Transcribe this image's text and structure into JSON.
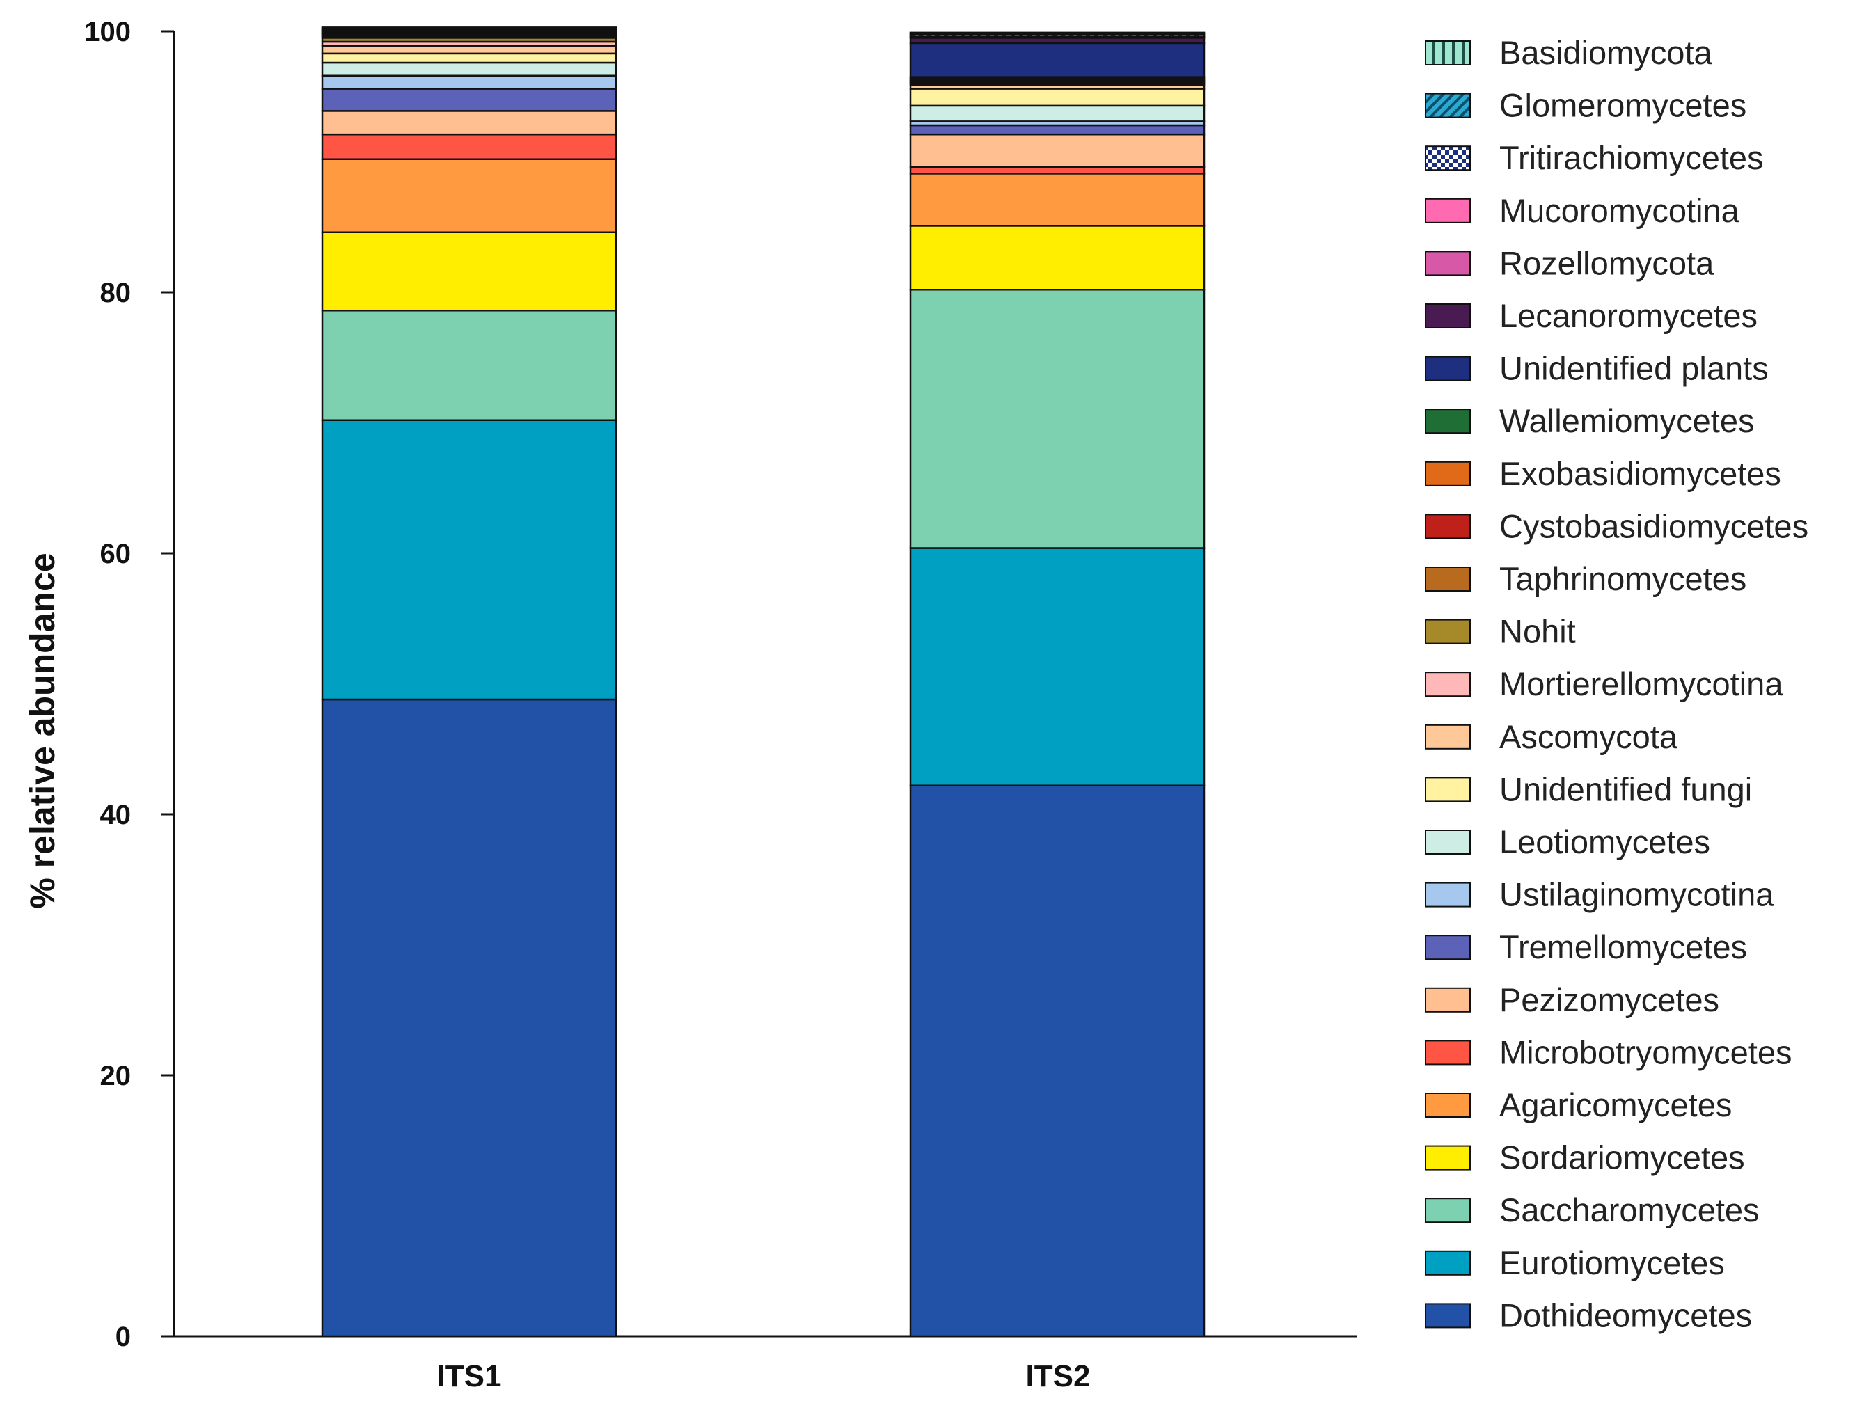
{
  "chart_data": {
    "type": "bar",
    "stacked": true,
    "title": "",
    "xlabel": "",
    "ylabel": "% relative abundance",
    "ylim": [
      0,
      100
    ],
    "yticks": [
      "0",
      "20",
      "40",
      "60",
      "80",
      "100"
    ],
    "categories": [
      "ITS1",
      "ITS2"
    ],
    "legend_position": "right",
    "series": [
      {
        "name": "Dothideomycetes",
        "color": "#2152A8",
        "pattern": "",
        "values": [
          48.8,
          42.2
        ]
      },
      {
        "name": "Eurotiomycetes",
        "color": "#00A0C2",
        "pattern": "",
        "values": [
          21.4,
          18.2
        ]
      },
      {
        "name": "Saccharomycetes",
        "color": "#7DD0B0",
        "pattern": "",
        "values": [
          8.4,
          19.8
        ]
      },
      {
        "name": "Sordariomycetes",
        "color": "#FFEE00",
        "pattern": "",
        "values": [
          6.0,
          4.9
        ]
      },
      {
        "name": "Agaricomycetes",
        "color": "#FF9A40",
        "pattern": "",
        "values": [
          5.6,
          4.0
        ]
      },
      {
        "name": "Microbotryomycetes",
        "color": "#FF5544",
        "pattern": "",
        "values": [
          1.9,
          0.5
        ]
      },
      {
        "name": "Pezizomycetes",
        "color": "#FFBF90",
        "pattern": "",
        "values": [
          1.8,
          2.5
        ]
      },
      {
        "name": "Tremellomycetes",
        "color": "#5B62B8",
        "pattern": "",
        "values": [
          1.7,
          0.7
        ]
      },
      {
        "name": "Ustilaginomycotina",
        "color": "#A6C8EE",
        "pattern": "",
        "values": [
          1.0,
          0.3
        ]
      },
      {
        "name": "Leotiomycetes",
        "color": "#CDEDE5",
        "pattern": "",
        "values": [
          1.0,
          1.2
        ]
      },
      {
        "name": "Unidentified fungi",
        "color": "#FFF2A0",
        "pattern": "",
        "values": [
          0.7,
          1.3
        ]
      },
      {
        "name": "Ascomycota",
        "color": "#FFC898",
        "pattern": "",
        "values": [
          0.6,
          0.3
        ]
      },
      {
        "name": "Mortierellomycotina",
        "color": "#FFB8B8",
        "pattern": "",
        "values": [
          0.3,
          0.1
        ]
      },
      {
        "name": "Nohit",
        "color": "#A68A2A",
        "pattern": "",
        "values": [
          0.3,
          0.1
        ]
      },
      {
        "name": "Taphrinomycetes",
        "color": "#B86A1E",
        "pattern": "",
        "values": [
          0.1,
          0.1
        ]
      },
      {
        "name": "Cystobasidiomycetes",
        "color": "#C0201A",
        "pattern": "",
        "values": [
          0.1,
          0.1
        ]
      },
      {
        "name": "Exobasidiomycetes",
        "color": "#E06A18",
        "pattern": "",
        "values": [
          0.1,
          0.1
        ]
      },
      {
        "name": "Wallemiomycetes",
        "color": "#1F6E36",
        "pattern": "",
        "values": [
          0.05,
          0.1
        ]
      },
      {
        "name": "Unidentified plants",
        "color": "#1E2F80",
        "pattern": "",
        "values": [
          0.05,
          2.6
        ]
      },
      {
        "name": "Lecanoromycetes",
        "color": "#4A1A52",
        "pattern": "",
        "values": [
          0.1,
          0.4
        ]
      },
      {
        "name": "Rozellomycota",
        "color": "#D858A8",
        "pattern": "",
        "values": [
          0.05,
          0.05
        ]
      },
      {
        "name": "Mucoromycotina",
        "color": "#FF6AB0",
        "pattern": "",
        "values": [
          0.05,
          0.05
        ]
      },
      {
        "name": "Tritirachiomycetes",
        "color": "#1E2F80",
        "pattern": "checker",
        "values": [
          0.1,
          0.2
        ]
      },
      {
        "name": "Glomeromycetes",
        "color": "#2AAAD0",
        "pattern": "diag",
        "values": [
          0.05,
          0.05
        ]
      },
      {
        "name": "Basidiomycota",
        "color": "#9EE6D0",
        "pattern": "vstripe",
        "values": [
          0.05,
          0.05
        ]
      }
    ]
  }
}
